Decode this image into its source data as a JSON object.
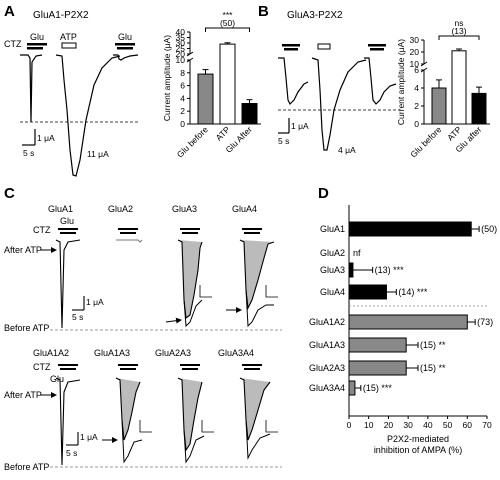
{
  "panels": {
    "A": {
      "label": "A",
      "title": "GluA1-P2X2",
      "ctz": "CTZ",
      "glu1": "Glu",
      "atp": "ATP",
      "glu2": "Glu",
      "scale_y": "1 μA",
      "scale_x": "5 s",
      "atp_amp": "11 μA"
    },
    "B": {
      "label": "B",
      "title": "GluA3-P2X2",
      "scale_y": "1 μA",
      "scale_x": "5 s",
      "atp_amp": "4 μA"
    },
    "C": {
      "label": "C",
      "top_titles": [
        "GluA1",
        "GluA2",
        "GluA3",
        "GluA4"
      ],
      "bottom_titles": [
        "GluA1A2",
        "GluA1A3",
        "GluA2A3",
        "GluA3A4"
      ],
      "ctz": "CTZ",
      "glu": "Glu",
      "after_atp": "After ATP",
      "before_atp": "Before ATP",
      "scale_y": "1 μA",
      "scale_x": "5 s"
    },
    "D": {
      "label": "D"
    }
  },
  "chart_data": [
    {
      "type": "bar",
      "panel": "A",
      "categories": [
        "Glu before",
        "ATP",
        "Glu After"
      ],
      "values": [
        7.8,
        29,
        3.2
      ],
      "errors": [
        0.7,
        1.2,
        0.6
      ],
      "colors": [
        "#888888",
        "#ffffff",
        "#000000"
      ],
      "ylabel": "Current amplitude (μA)",
      "yticks_lower": [
        0,
        2,
        4,
        6,
        8,
        10
      ],
      "yticks_upper": [
        20,
        25,
        30,
        35,
        40
      ],
      "axis_break": true,
      "sig": "***",
      "n": "(50)"
    },
    {
      "type": "bar",
      "panel": "B",
      "categories": [
        "Glu before",
        "ATP",
        "Glu after"
      ],
      "values": [
        4.0,
        21,
        3.4
      ],
      "errors": [
        0.9,
        1.5,
        0.7
      ],
      "colors": [
        "#888888",
        "#ffffff",
        "#000000"
      ],
      "ylabel": "Current amplitude (μA)",
      "yticks_lower": [
        0,
        2,
        4,
        6
      ],
      "yticks_upper": [
        10,
        20,
        30
      ],
      "axis_break": true,
      "sig": "ns",
      "n": "(13)"
    },
    {
      "type": "bar",
      "panel": "D",
      "orientation": "horizontal",
      "categories": [
        "GluA1",
        "GluA2",
        "GluA3",
        "GluA4",
        "GluA1A2",
        "GluA1A3",
        "GluA2A3",
        "GluA3A4"
      ],
      "values": [
        62,
        null,
        2,
        19,
        60,
        29,
        29,
        3
      ],
      "errors": [
        4,
        null,
        10,
        5,
        4,
        6,
        6,
        3
      ],
      "colors": [
        "#000000",
        "#000000",
        "#000000",
        "#000000",
        "#888888",
        "#888888",
        "#888888",
        "#888888"
      ],
      "annotations": [
        "(50)",
        "nf",
        "(13) ***",
        "(14) ***",
        "(73)",
        "(15) **",
        "(15) **",
        "(15) ***"
      ],
      "xlabel": "P2X2-mediated\ninhibition of AMPA (%)",
      "xticks": [
        0,
        10,
        20,
        30,
        40,
        50,
        60,
        70
      ],
      "xlim": [
        0,
        70
      ]
    }
  ]
}
